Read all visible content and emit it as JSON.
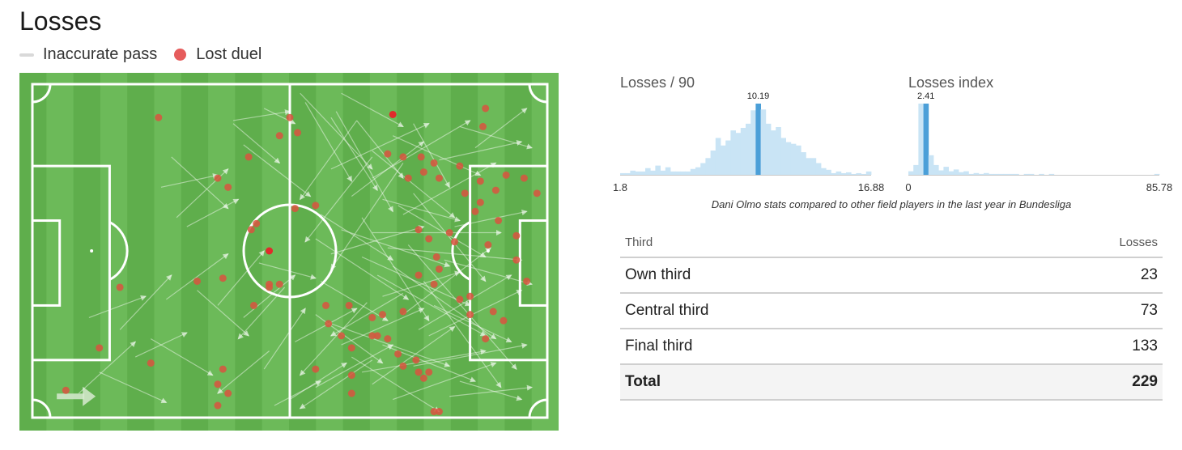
{
  "title": "Losses",
  "legend": {
    "inaccurate_pass": "Inaccurate pass",
    "lost_duel": "Lost duel"
  },
  "colors": {
    "pitch_stripe_dark": "#5fae4c",
    "pitch_stripe_light": "#6cba59",
    "lines": "#ffffff",
    "duel": "#d9543f",
    "duel_highlight": "#e02b2b",
    "hist_bar": "#c9e4f5",
    "hist_highlight": "#4b9fd8"
  },
  "caption": "Dani Olmo stats compared to other field players in the last year in Bundesliga",
  "table": {
    "header_third": "Third",
    "header_losses": "Losses",
    "rows": [
      {
        "third": "Own third",
        "losses": "23"
      },
      {
        "third": "Central third",
        "losses": "73"
      },
      {
        "third": "Final third",
        "losses": "133"
      }
    ],
    "total": {
      "third": "Total",
      "losses": "229"
    }
  },
  "chart_data": [
    {
      "type": "scatter",
      "title": "Losses",
      "series": [
        {
          "name": "Lost duel",
          "points": [
            [
              24.5,
              11
            ],
            [
              50,
              11
            ],
            [
              88,
              8
            ],
            [
              87.5,
              14
            ],
            [
              42,
              24
            ],
            [
              36,
              31
            ],
            [
              38,
              34
            ],
            [
              48,
              17
            ],
            [
              51.5,
              16
            ],
            [
              73,
              31
            ],
            [
              69,
              23
            ],
            [
              72,
              24
            ],
            [
              75.5,
              24
            ],
            [
              78,
              26
            ],
            [
              76,
              29
            ],
            [
              79,
              31
            ],
            [
              83,
              27
            ],
            [
              87,
              32
            ],
            [
              90,
              35
            ],
            [
              92,
              30
            ],
            [
              95.5,
              31
            ],
            [
              98,
              36
            ],
            [
              84,
              36
            ],
            [
              87,
              39
            ],
            [
              86,
              42
            ],
            [
              90.5,
              45
            ],
            [
              94,
              50
            ],
            [
              88.5,
              53
            ],
            [
              94,
              58
            ],
            [
              82,
              52
            ],
            [
              81,
              49
            ],
            [
              75,
              48
            ],
            [
              77,
              51
            ],
            [
              78.5,
              57
            ],
            [
              79,
              61
            ],
            [
              78,
              66
            ],
            [
              75,
              63
            ],
            [
              83,
              71
            ],
            [
              85,
              70
            ],
            [
              85,
              76
            ],
            [
              89.5,
              75
            ],
            [
              91.5,
              78
            ],
            [
              96,
              65
            ],
            [
              88,
              84
            ],
            [
              72,
              75
            ],
            [
              66,
              77
            ],
            [
              68,
              76
            ],
            [
              61.5,
              73
            ],
            [
              57,
              73
            ],
            [
              57.5,
              79
            ],
            [
              60,
              83
            ],
            [
              62,
              87
            ],
            [
              66,
              83
            ],
            [
              69,
              84
            ],
            [
              71,
              89
            ],
            [
              74.5,
              91
            ],
            [
              72,
              93
            ],
            [
              75,
              95
            ],
            [
              76,
              97
            ],
            [
              55,
              40
            ],
            [
              51,
              41
            ],
            [
              43.5,
              46
            ],
            [
              42.5,
              48
            ],
            [
              48,
              66
            ],
            [
              46,
              66
            ],
            [
              37,
              64
            ],
            [
              32,
              65
            ],
            [
              43,
              73
            ],
            [
              17,
              67
            ],
            [
              13,
              87
            ],
            [
              23,
              92
            ],
            [
              37,
              94
            ],
            [
              36,
              99
            ],
            [
              38,
              102
            ],
            [
              36,
              106
            ],
            [
              6.5,
              101
            ],
            [
              62,
              96
            ],
            [
              62,
              102
            ],
            [
              55,
              94
            ],
            [
              78,
              108
            ],
            [
              79,
              108
            ],
            [
              77,
              95
            ],
            [
              46,
              67
            ],
            [
              67,
              83
            ]
          ]
        },
        {
          "name": "Highlighted duel",
          "points": [
            [
              70,
              10
            ],
            [
              46,
              55
            ]
          ]
        },
        {
          "name": "Inaccurate pass",
          "segments": [
            [
              52,
              3,
              66,
              28
            ],
            [
              45,
              8,
              51,
              13
            ],
            [
              53,
              6,
              62,
              32
            ],
            [
              58,
              11,
              67,
              35
            ],
            [
              60,
              3,
              72,
              14
            ],
            [
              59,
              9,
              70,
              42
            ],
            [
              63,
              12,
              72,
              31
            ],
            [
              63,
              12,
              52,
              38
            ],
            [
              58,
              28,
              77,
              13
            ],
            [
              62,
              37,
              76,
              19
            ],
            [
              66,
              22,
              82,
              44
            ],
            [
              66,
              24,
              53,
              52
            ],
            [
              66,
              31,
              85,
              12
            ],
            [
              68,
              38,
              83,
              45
            ],
            [
              70,
              17,
              87,
              30
            ],
            [
              71,
              40,
              88,
              57
            ],
            [
              72,
              43,
              90,
              26
            ],
            [
              72,
              26,
              58,
              61
            ],
            [
              74,
              13,
              81,
              34
            ],
            [
              74,
              36,
              88,
              65
            ],
            [
              56,
              43,
              70,
              58
            ],
            [
              55,
              51,
              73,
              71
            ],
            [
              58,
              56,
              76,
              47
            ],
            [
              60,
              48,
              81,
              60
            ],
            [
              64,
              57,
              85,
              73
            ],
            [
              64,
              44,
              77,
              78
            ],
            [
              66,
              49,
              91,
              49
            ],
            [
              67,
              63,
              88,
              83
            ],
            [
              68,
              70,
              83,
              62
            ],
            [
              69,
              54,
              95,
              58
            ],
            [
              70,
              60,
              90,
              84
            ],
            [
              72,
              76,
              89,
              54
            ],
            [
              73,
              53,
              94,
              94
            ],
            [
              75,
              81,
              93,
              63
            ],
            [
              76,
              65,
              91,
              100
            ],
            [
              77,
              83,
              95,
              68
            ],
            [
              56,
              65,
              69,
              78
            ],
            [
              55,
              76,
              68,
              92
            ],
            [
              58,
              79,
              81,
              93
            ],
            [
              60,
              86,
              76,
              74
            ],
            [
              62,
              90,
              79,
              108
            ],
            [
              64,
              95,
              88,
              88
            ],
            [
              65,
              72,
              52,
              96
            ],
            [
              66,
              99,
              82,
              80
            ],
            [
              68,
              86,
              86,
              98
            ],
            [
              70,
              104,
              90,
              92
            ],
            [
              72,
              69,
              58,
              83
            ],
            [
              74,
              93,
              96,
              86
            ],
            [
              78,
              73,
              93,
              85
            ],
            [
              80,
              58,
              97,
              66
            ],
            [
              82,
              47,
              96,
              42
            ],
            [
              79,
              25,
              95,
              19
            ],
            [
              83,
              14,
              97,
              21
            ],
            [
              86,
              21,
              96,
              8
            ],
            [
              83,
              98,
              95,
              104
            ],
            [
              81,
              103,
              97,
              100
            ],
            [
              66,
              91,
              52,
              107
            ],
            [
              55,
              100,
              70,
              86
            ],
            [
              50,
              104,
              61,
              92
            ],
            [
              45,
              94,
              53,
              74
            ],
            [
              46,
              88,
              36,
              102
            ],
            [
              41,
              77,
              51,
              63
            ],
            [
              36,
              73,
              45,
              55
            ],
            [
              32,
              68,
              42,
              83
            ],
            [
              26,
              71,
              38,
              56
            ],
            [
              23,
              84,
              35,
              96
            ],
            [
              20,
              90,
              30,
              82
            ],
            [
              17,
              81,
              27,
              63
            ],
            [
              13,
              95,
              26,
              105
            ],
            [
              9,
              102,
              20,
              85
            ],
            [
              11,
              77,
              22,
              70
            ],
            [
              28,
              44,
              38,
              28
            ],
            [
              30,
              47,
              40,
              38
            ],
            [
              27,
              24,
              38,
              41
            ],
            [
              25,
              34,
              36,
              30
            ],
            [
              39,
              12,
              50,
              9
            ],
            [
              39,
              13,
              48,
              26
            ],
            [
              41,
              20,
              54,
              37
            ],
            [
              44,
              59,
              55,
              64
            ],
            [
              49,
              67,
              40,
              84
            ],
            [
              47,
              106,
              56,
              98
            ],
            [
              51,
              85,
              63,
              74
            ]
          ]
        }
      ],
      "xlim": [
        0,
        100
      ],
      "ylim": [
        0,
        110
      ]
    },
    {
      "type": "bar",
      "title": "Losses / 90",
      "xlim": [
        1.8,
        16.88
      ],
      "x_tick_labels": [
        "1.8",
        "16.88"
      ],
      "highlight": {
        "label": "10.19",
        "bin_index": 27
      },
      "values": [
        2,
        2,
        5,
        4,
        4,
        8,
        5,
        11,
        5,
        9,
        4,
        4,
        4,
        4,
        7,
        9,
        14,
        20,
        29,
        44,
        35,
        41,
        53,
        50,
        56,
        61,
        77,
        85,
        78,
        61,
        53,
        57,
        44,
        39,
        37,
        35,
        27,
        20,
        20,
        14,
        8,
        6,
        2,
        4,
        2,
        3,
        1,
        2,
        1,
        4
      ]
    },
    {
      "type": "bar",
      "title": "Losses index",
      "xlim": [
        0,
        85.78
      ],
      "x_tick_labels": [
        "0",
        "85.78"
      ],
      "highlight": {
        "label": "2.41",
        "bin_index": 3
      },
      "values": [
        4,
        11,
        80,
        80,
        22,
        11,
        5,
        9,
        4,
        6,
        3,
        4,
        1,
        2,
        1,
        2,
        1,
        1,
        1,
        1,
        1,
        1,
        0,
        1,
        1,
        0,
        1,
        0,
        1,
        0,
        0,
        0,
        0,
        0,
        0,
        0,
        0,
        0,
        0,
        0,
        0,
        0,
        0,
        0,
        0,
        0,
        0,
        0,
        0,
        1
      ]
    }
  ]
}
